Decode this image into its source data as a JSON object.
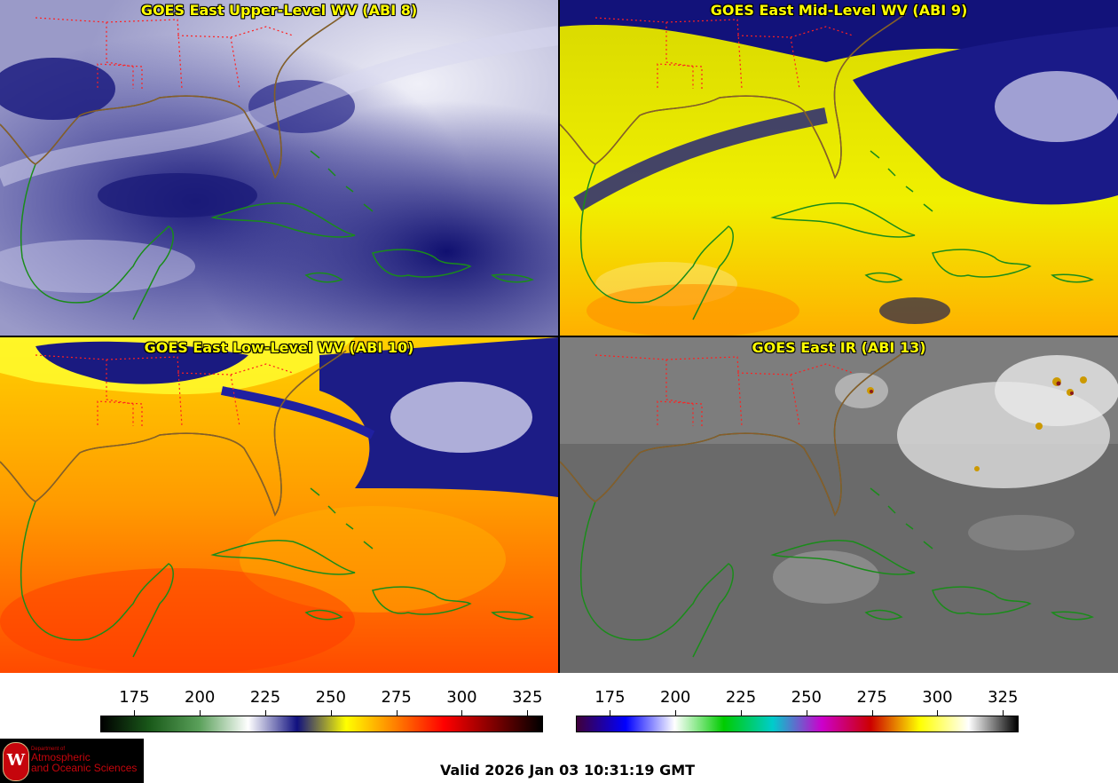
{
  "panels": [
    {
      "title": "GOES East Upper-Level WV (ABI 8)",
      "scheme": "wv_upper"
    },
    {
      "title": "GOES East Mid-Level WV (ABI 9)",
      "scheme": "wv_mid"
    },
    {
      "title": "GOES East Low-Level WV (ABI 10)",
      "scheme": "wv_low"
    },
    {
      "title": "GOES East IR (ABI 13)",
      "scheme": "ir"
    }
  ],
  "colorbars": {
    "wv": {
      "ticks": [
        "175",
        "200",
        "225",
        "250",
        "275",
        "300",
        "325"
      ],
      "range": [
        162,
        331
      ],
      "colors": [
        "#000000",
        "#1a5a1a",
        "#5aa05a",
        "#ffffff",
        "#10107f",
        "#ffff00",
        "#ff8000",
        "#ff0000",
        "#800000",
        "#000000"
      ]
    },
    "ir": {
      "ticks": [
        "175",
        "200",
        "225",
        "250",
        "275",
        "300",
        "325"
      ],
      "range": [
        162,
        331
      ],
      "colors": [
        "#40003a",
        "#0000ff",
        "#ffffff",
        "#00cc00",
        "#00cccc",
        "#cc00cc",
        "#cc0000",
        "#ffff00",
        "#ffffff",
        "#000000"
      ]
    }
  },
  "footer": {
    "valid": "Valid 2026 Jan 03 10:31:19 GMT"
  },
  "logo": {
    "line1": "Department of",
    "line2": "Atmospheric",
    "line3": "and Oceanic Sciences",
    "seal": "W"
  },
  "map_colors": {
    "coast": "#1a8c1a",
    "us_coast": "#8b5a2b",
    "states": "#ff2020"
  }
}
